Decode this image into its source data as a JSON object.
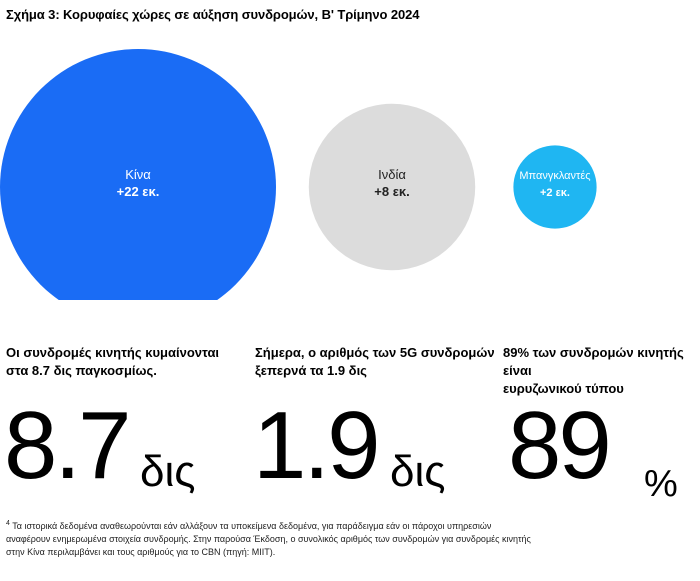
{
  "title": "Σχήμα 3: Κορυφαίες χώρες σε αύξηση συνδρομών, Β' Τρίμηνο 2024",
  "chart_data": {
    "type": "bubble",
    "title": "Σχήμα 3: Κορυφαίες χώρες σε αύξηση συνδρομών, Β' Τρίμηνο 2024",
    "unit": "εκ.",
    "items": [
      {
        "name": "Κίνα",
        "value": 22,
        "label": "+22 εκ.",
        "color": "#1a6cf5",
        "text_color": "#ffffff"
      },
      {
        "name": "Ινδία",
        "value": 8,
        "label": "+8 εκ.",
        "color": "#dcdcdc",
        "text_color": "#222222"
      },
      {
        "name": "Μπανγκλαντές",
        "value": 2,
        "label": "+2 εκ.",
        "color": "#1fb6f2",
        "text_color": "#ffffff"
      }
    ]
  },
  "stats": [
    {
      "caption_line1": "Οι συνδρομές κινητής κυμαίνονται",
      "caption_line2": "στα 8.7 δις παγκοσμίως.",
      "value": "8.7",
      "unit": "δις"
    },
    {
      "caption_line1": "Σήμερα, ο αριθμός των 5G συνδρομών",
      "caption_line2": "ξεπερνά τα 1.9 δις",
      "value": "1.9",
      "unit": "δις"
    },
    {
      "caption_line1": "89% των συνδρομών κινητής είναι",
      "caption_line2": "ευρυζωνικού τύπου",
      "value": "89",
      "unit": "%"
    }
  ],
  "footnote": {
    "marker": "4",
    "line1": "Τα ιστορικά δεδομένα αναθεωρούνται εάν αλλάξουν τα υποκείμενα δεδομένα, για παράδειγμα εάν οι πάροχοι υπηρεσιών",
    "line2": "αναφέρουν ενημερωμένα στοιχεία συνδρομής. Στην παρούσα Έκδοση, ο συνολικός αριθμός των συνδρομών για συνδρομές κινητής",
    "line3": "στην Κίνα περιλαμβάνει και τους αριθμούς για το CBN (πηγή: MIIT)."
  }
}
